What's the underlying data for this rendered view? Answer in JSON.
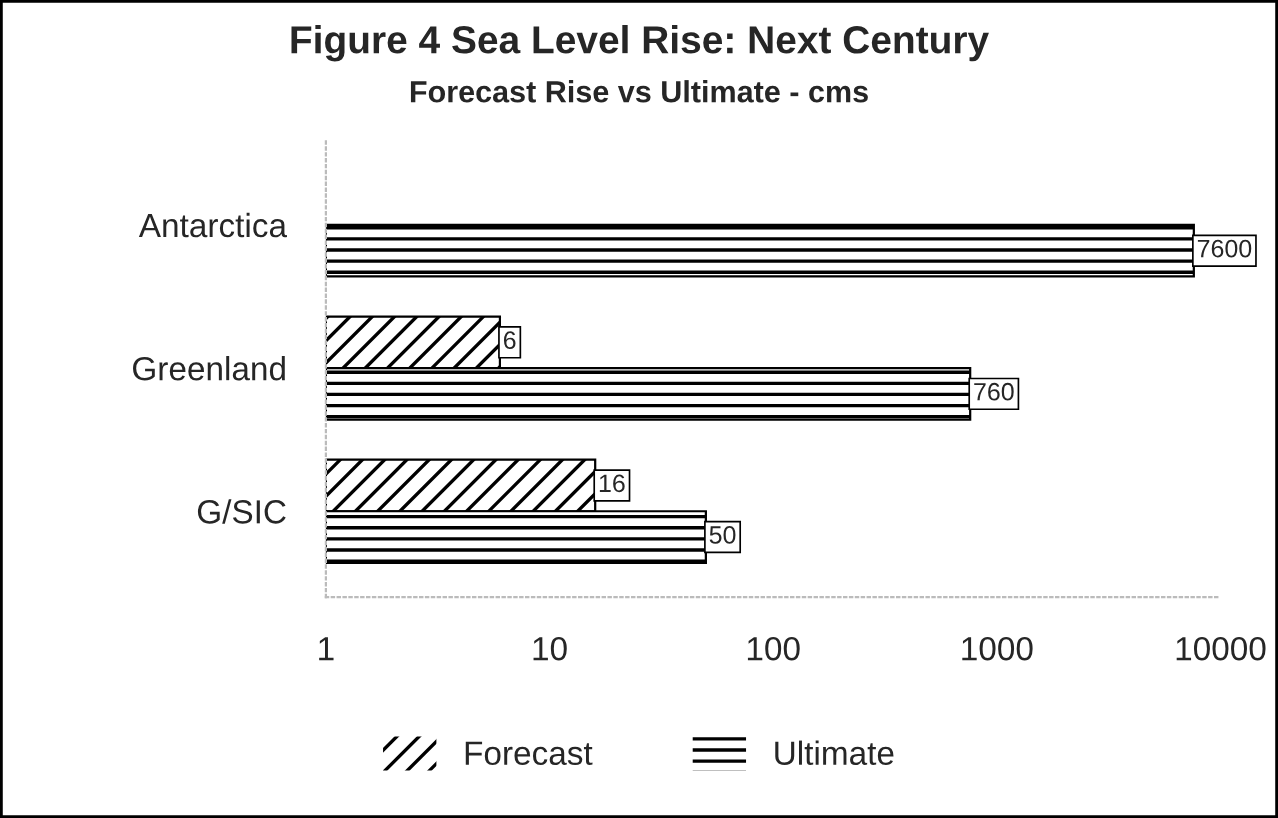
{
  "chart_data": {
    "type": "bar",
    "orientation": "horizontal",
    "title": "Figure 4 Sea Level Rise: Next Century",
    "subtitle": "Forecast Rise vs Ultimate - cms",
    "categories": [
      "Antarctica",
      "Greenland",
      "G/SIC"
    ],
    "series": [
      {
        "name": "Forecast",
        "color": "#000000",
        "values": [
          null,
          6,
          16
        ]
      },
      {
        "name": "Ultimate",
        "color": "#000000",
        "values": [
          7600,
          760,
          50
        ]
      }
    ],
    "log": "x",
    "xlim": [
      1,
      10000
    ],
    "xticks": [
      1,
      10,
      100,
      1000,
      10000
    ],
    "data_labels": true,
    "grid": false,
    "legend": "bottom"
  }
}
